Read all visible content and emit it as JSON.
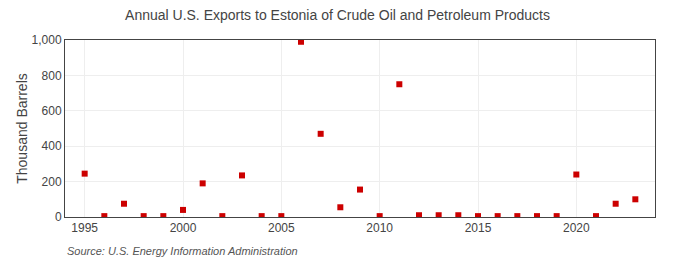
{
  "chart_data": {
    "type": "scatter",
    "title": "Annual U.S. Exports to Estonia of Crude Oil and Petroleum Products",
    "ylabel": "Thousand Barrels",
    "annotations": [
      "Source: U.S. Energy Information Administration"
    ],
    "x": [
      1995,
      1996,
      1997,
      1998,
      1999,
      2000,
      2001,
      2002,
      2003,
      2004,
      2005,
      2006,
      2007,
      2008,
      2009,
      2010,
      2011,
      2012,
      2013,
      2014,
      2015,
      2016,
      2017,
      2018,
      2019,
      2020,
      2021,
      2022,
      2023
    ],
    "values": [
      245,
      5,
      75,
      5,
      5,
      40,
      190,
      5,
      235,
      5,
      5,
      990,
      470,
      55,
      155,
      5,
      750,
      10,
      10,
      10,
      5,
      5,
      5,
      5,
      5,
      240,
      5,
      75,
      100
    ],
    "color": "#cc0000",
    "marker": "square",
    "xlim": [
      1994,
      2024
    ],
    "xticks": [
      1995,
      2000,
      2005,
      2010,
      2015,
      2020
    ],
    "ylim": [
      0,
      1000
    ],
    "yticks": [
      0,
      200,
      400,
      600,
      800,
      {
        "value": 1000,
        "label": "1,000"
      }
    ],
    "grid": true
  }
}
